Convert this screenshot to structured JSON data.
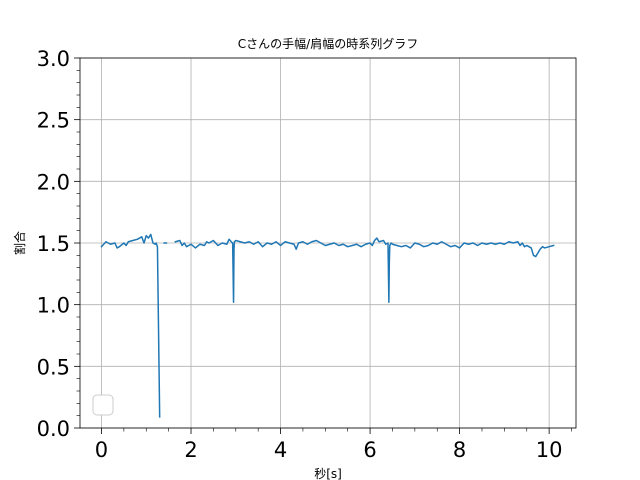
{
  "chart_data": {
    "type": "line",
    "title": "Cさんの手幅/肩幅の時系列グラフ",
    "xlabel": "秒[s]",
    "ylabel": "割合",
    "xlim": [
      -0.48,
      10.6
    ],
    "ylim": [
      0.0,
      3.0
    ],
    "xticks": [
      0,
      2,
      4,
      6,
      8,
      10
    ],
    "yticks": [
      0.0,
      0.5,
      1.0,
      1.5,
      2.0,
      2.5,
      3.0
    ],
    "xtick_labels": [
      "0",
      "2",
      "4",
      "6",
      "8",
      "10"
    ],
    "ytick_labels": [
      "0.0",
      "0.5",
      "1.0",
      "1.5",
      "2.0",
      "2.5",
      "3.0"
    ],
    "grid": true,
    "legend": {
      "placement": "lower-left",
      "entries": []
    },
    "colors": {
      "series": "#1f77b4",
      "grid": "#b0b0b0",
      "axes": "#000000"
    },
    "series": [
      {
        "segments": [
          {
            "x": [
              0.0,
              0.1,
              0.2,
              0.3,
              0.35,
              0.4,
              0.5,
              0.55,
              0.6,
              0.7,
              0.8,
              0.9,
              0.95,
              1.0,
              1.05,
              1.1,
              1.15,
              1.2,
              1.22,
              1.25,
              1.3
            ],
            "y": [
              1.47,
              1.51,
              1.49,
              1.5,
              1.46,
              1.47,
              1.5,
              1.48,
              1.51,
              1.52,
              1.53,
              1.55,
              1.5,
              1.56,
              1.54,
              1.57,
              1.5,
              1.49,
              1.5,
              1.47,
              0.09
            ]
          },
          {
            "x": [
              1.4,
              1.45
            ],
            "y": [
              1.5,
              1.5
            ]
          },
          {
            "x": [
              1.65,
              1.75,
              1.8,
              1.85,
              1.9,
              2.0,
              2.1,
              2.2,
              2.3,
              2.35,
              2.4,
              2.5,
              2.6,
              2.7,
              2.8,
              2.85,
              2.9,
              2.93,
              2.95,
              2.96,
              2.97,
              3.0,
              3.1,
              3.2,
              3.3,
              3.4,
              3.5,
              3.6,
              3.7,
              3.8,
              3.9,
              4.0,
              4.1,
              4.2,
              4.3,
              4.35,
              4.4,
              4.5,
              4.6,
              4.7,
              4.8,
              4.9,
              5.0,
              5.1,
              5.2,
              5.3,
              5.4,
              5.5,
              5.6,
              5.7,
              5.8,
              5.9,
              6.0,
              6.05,
              6.1,
              6.15,
              6.2,
              6.3,
              6.35,
              6.4,
              6.42,
              6.43,
              6.44,
              6.47,
              6.5,
              6.6,
              6.7,
              6.8,
              6.9,
              7.0,
              7.1,
              7.2,
              7.3,
              7.4,
              7.5,
              7.6,
              7.7,
              7.8,
              7.9,
              8.0,
              8.1,
              8.2,
              8.3,
              8.4,
              8.5,
              8.6,
              8.7,
              8.8,
              8.9,
              9.0,
              9.1,
              9.2,
              9.3,
              9.35,
              9.4,
              9.45,
              9.5,
              9.55,
              9.6,
              9.65,
              9.7,
              9.75,
              9.8,
              9.85,
              9.9,
              10.0,
              10.1
            ],
            "y": [
              1.51,
              1.52,
              1.48,
              1.5,
              1.47,
              1.49,
              1.46,
              1.49,
              1.48,
              1.51,
              1.5,
              1.52,
              1.48,
              1.5,
              1.49,
              1.53,
              1.51,
              1.5,
              1.02,
              1.45,
              1.51,
              1.52,
              1.51,
              1.5,
              1.51,
              1.49,
              1.51,
              1.47,
              1.5,
              1.49,
              1.51,
              1.48,
              1.51,
              1.5,
              1.49,
              1.45,
              1.5,
              1.51,
              1.49,
              1.51,
              1.52,
              1.5,
              1.48,
              1.49,
              1.5,
              1.48,
              1.49,
              1.47,
              1.48,
              1.49,
              1.47,
              1.49,
              1.5,
              1.48,
              1.52,
              1.54,
              1.51,
              1.52,
              1.49,
              1.5,
              1.02,
              1.35,
              1.48,
              1.5,
              1.49,
              1.48,
              1.47,
              1.48,
              1.46,
              1.5,
              1.49,
              1.47,
              1.48,
              1.5,
              1.49,
              1.51,
              1.49,
              1.47,
              1.48,
              1.46,
              1.5,
              1.49,
              1.5,
              1.48,
              1.5,
              1.49,
              1.5,
              1.49,
              1.5,
              1.49,
              1.51,
              1.5,
              1.51,
              1.48,
              1.5,
              1.47,
              1.48,
              1.47,
              1.46,
              1.4,
              1.39,
              1.42,
              1.45,
              1.47,
              1.46,
              1.47,
              1.48
            ]
          }
        ]
      }
    ]
  }
}
